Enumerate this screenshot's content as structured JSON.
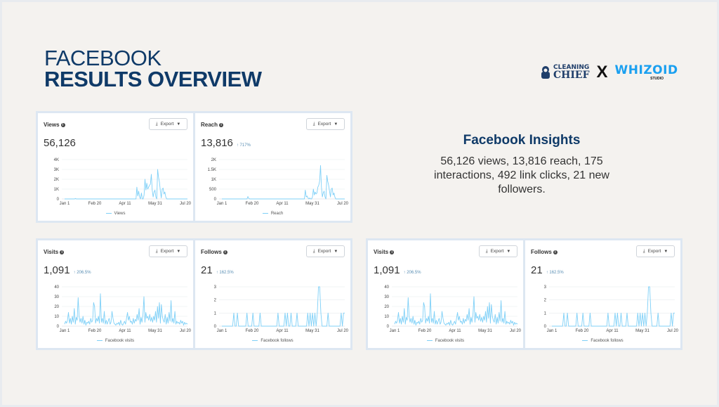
{
  "header": {
    "title_line1": "FACEBOOK",
    "title_line2": "RESULTS OVERVIEW"
  },
  "logos": {
    "partner1_line1": "CLEANING",
    "partner1_line2": "CHIEF",
    "separator": "X",
    "partner2_line1": "WHIZOID",
    "partner2_line2": "STUDIO"
  },
  "insights": {
    "title": "Facebook Insights",
    "body": "56,126 views, 13,816 reach, 175 interactions, 492 link clicks, 21 new followers."
  },
  "colors": {
    "title": "#0f3a68",
    "line": "#7fd0f7",
    "whizoid": "#1aa0f0",
    "background": "#f4f2ef"
  },
  "export_label": "Export",
  "cards": {
    "views": {
      "label": "Views",
      "value": "56,126",
      "delta": "",
      "legend": "Views"
    },
    "reach": {
      "label": "Reach",
      "value": "13,816",
      "delta": "↑ 717%",
      "legend": "Reach"
    },
    "visits": {
      "label": "Visits",
      "value": "1,091",
      "delta": "↑ 206.5%",
      "legend": "Facebook visits"
    },
    "follows": {
      "label": "Follows",
      "value": "21",
      "delta": "↑ 162.5%",
      "legend": "Facebook follows"
    }
  },
  "chart_data": [
    {
      "type": "line",
      "title": "Views",
      "series_name": "Views",
      "x_ticks": [
        "Jan 1",
        "Feb 20",
        "Apr 11",
        "May 31",
        "Jul 20"
      ],
      "y_ticks": [
        "0",
        "1K",
        "2K",
        "3K",
        "4K"
      ],
      "ylim": [
        0,
        4000
      ],
      "values": [
        0,
        0,
        0,
        0,
        0,
        0,
        0,
        0,
        0,
        0,
        0,
        0,
        50,
        0,
        0,
        0,
        0,
        0,
        0,
        0,
        0,
        0,
        0,
        0,
        0,
        0,
        0,
        0,
        0,
        0,
        0,
        0,
        0,
        0,
        0,
        0,
        0,
        0,
        0,
        0,
        0,
        0,
        0,
        0,
        0,
        0,
        0,
        0,
        0,
        0,
        0,
        0,
        0,
        0,
        0,
        0,
        0,
        0,
        0,
        0,
        0,
        0,
        0,
        0,
        0,
        0,
        0,
        0,
        0,
        0,
        0,
        0,
        0,
        0,
        0,
        0,
        0,
        0,
        0,
        0,
        1200,
        300,
        800,
        200,
        0,
        600,
        0,
        0,
        400,
        2000,
        900,
        1600,
        1000,
        1200,
        1400,
        1500,
        2500,
        900,
        200,
        700,
        900,
        200,
        0,
        3000,
        2200,
        1700,
        800,
        100,
        1000,
        1100,
        500,
        700,
        200,
        0,
        0,
        0,
        0,
        0,
        0,
        0,
        0,
        0,
        0,
        0,
        0,
        0,
        0,
        0,
        0,
        0,
        0,
        0,
        0,
        0,
        0,
        0,
        0
      ]
    },
    {
      "type": "line",
      "title": "Reach",
      "series_name": "Reach",
      "x_ticks": [
        "Jan 1",
        "Feb 20",
        "Apr 11",
        "May 31",
        "Jul 20"
      ],
      "y_ticks": [
        "0",
        "500",
        "1K",
        "1.5K",
        "2K"
      ],
      "ylim": [
        0,
        2000
      ],
      "values": [
        0,
        0,
        0,
        0,
        0,
        0,
        0,
        0,
        0,
        0,
        0,
        0,
        0,
        0,
        0,
        0,
        0,
        0,
        0,
        0,
        0,
        0,
        0,
        0,
        0,
        0,
        0,
        0,
        0,
        120,
        30,
        0,
        0,
        0,
        0,
        0,
        0,
        0,
        0,
        0,
        0,
        0,
        0,
        0,
        0,
        0,
        0,
        0,
        0,
        0,
        0,
        0,
        0,
        0,
        0,
        0,
        0,
        0,
        0,
        0,
        0,
        0,
        0,
        0,
        0,
        0,
        0,
        0,
        0,
        0,
        0,
        0,
        0,
        0,
        0,
        0,
        0,
        0,
        0,
        0,
        0,
        0,
        0,
        0,
        0,
        0,
        0,
        0,
        0,
        0,
        0,
        0,
        0,
        450,
        100,
        150,
        50,
        0,
        50,
        0,
        0,
        100,
        500,
        200,
        350,
        250,
        300,
        600,
        700,
        900,
        1700,
        600,
        100,
        300,
        400,
        100,
        0,
        1200,
        900,
        700,
        400,
        100,
        500,
        550,
        200,
        300,
        100,
        0,
        0,
        0,
        0,
        0,
        0,
        0,
        0,
        0,
        0,
        0
      ]
    },
    {
      "type": "line",
      "title": "Visits",
      "series_name": "Facebook visits",
      "x_ticks": [
        "Jan 1",
        "Feb 20",
        "Apr 11",
        "May 31",
        "Jul 20"
      ],
      "y_ticks": [
        "0",
        "10",
        "20",
        "30",
        "40"
      ],
      "ylim": [
        0,
        40
      ],
      "values": [
        2,
        5,
        3,
        6,
        14,
        3,
        8,
        2,
        10,
        4,
        18,
        2,
        9,
        6,
        29,
        10,
        4,
        8,
        3,
        10,
        2,
        6,
        1,
        4,
        3,
        5,
        2,
        8,
        4,
        6,
        24,
        20,
        3,
        8,
        5,
        10,
        3,
        33,
        4,
        8,
        3,
        15,
        2,
        6,
        2,
        5,
        8,
        2,
        4,
        15,
        8,
        3,
        2,
        1,
        3,
        2,
        4,
        1,
        6,
        2,
        1,
        3,
        5,
        2,
        8,
        14,
        6,
        10,
        4,
        5,
        2,
        8,
        3,
        7,
        5,
        12,
        6,
        18,
        2,
        9,
        4,
        12,
        30,
        4,
        14,
        8,
        10,
        6,
        12,
        5,
        9,
        4,
        10,
        6,
        15,
        4,
        20,
        8,
        24,
        3,
        22,
        10,
        6,
        4,
        12,
        2,
        9,
        3,
        14,
        5,
        26,
        4,
        8,
        3,
        15,
        2,
        5,
        3,
        4,
        2,
        6,
        3,
        5,
        1,
        4,
        2,
        3,
        2
      ]
    },
    {
      "type": "line",
      "title": "Follows",
      "series_name": "Facebook follows",
      "x_ticks": [
        "Jan 1",
        "Feb 20",
        "Apr 11",
        "May 31",
        "Jul 20"
      ],
      "y_ticks": [
        "0",
        "1",
        "2",
        "3"
      ],
      "ylim": [
        0,
        3
      ],
      "values": [
        0,
        0,
        0,
        0,
        0,
        0,
        0,
        0,
        0,
        0,
        1,
        0,
        0,
        1,
        0,
        0,
        0,
        0,
        0,
        0,
        0,
        1,
        0,
        0,
        0,
        0,
        1,
        0,
        0,
        0,
        0,
        0,
        1,
        0,
        0,
        0,
        0,
        0,
        0,
        0,
        0,
        0,
        0,
        0,
        0,
        0,
        0,
        1,
        0,
        0,
        0,
        0,
        0,
        1,
        0,
        1,
        0,
        0,
        1,
        0,
        0,
        0,
        0,
        1,
        0,
        0,
        0,
        0,
        0,
        0,
        0,
        0,
        1,
        0,
        1,
        0,
        1,
        0,
        1,
        0,
        1,
        3,
        3,
        1,
        0,
        0,
        0,
        0,
        0,
        1,
        0,
        0,
        0,
        0,
        0,
        0,
        0,
        0,
        0,
        0,
        1,
        0,
        1,
        1
      ]
    }
  ]
}
